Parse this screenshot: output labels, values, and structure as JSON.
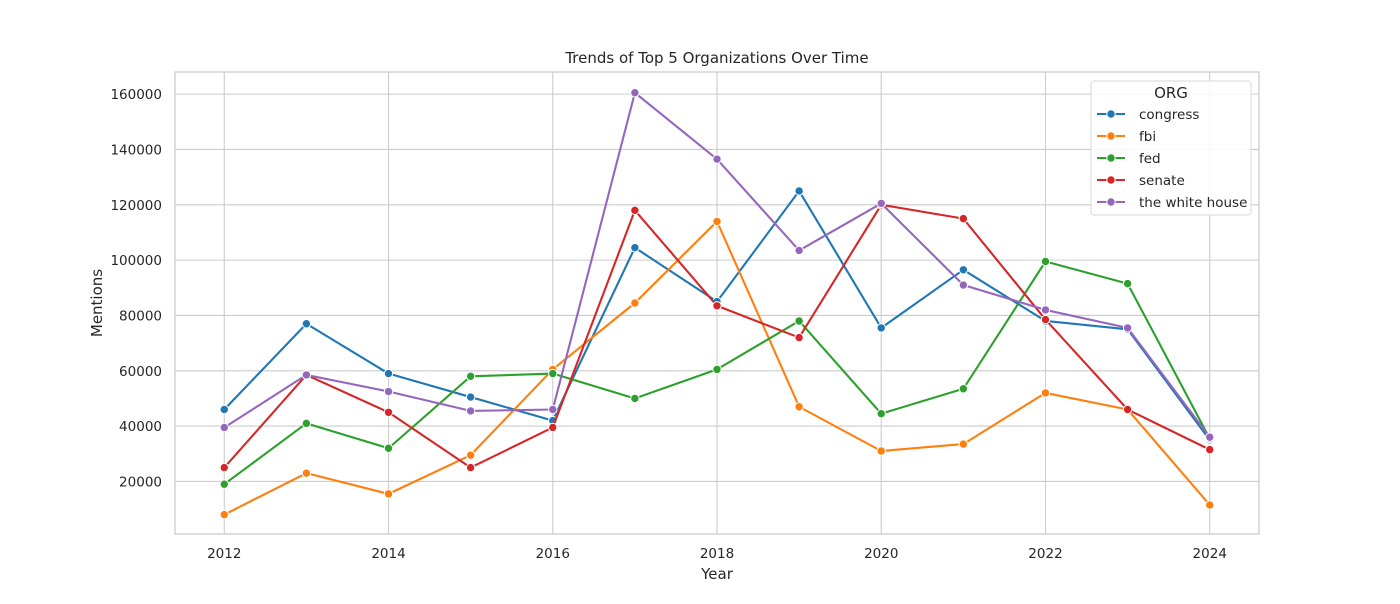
{
  "chart_data": {
    "type": "line",
    "title": "Trends of Top 5 Organizations Over Time",
    "xlabel": "Year",
    "ylabel": "Mentions",
    "x": [
      2012,
      2013,
      2014,
      2015,
      2016,
      2017,
      2018,
      2019,
      2020,
      2021,
      2022,
      2023,
      2024
    ],
    "xticks": [
      "2012",
      "2014",
      "2016",
      "2018",
      "2020",
      "2022",
      "2024"
    ],
    "yticks": [
      "20000",
      "40000",
      "60000",
      "80000",
      "100000",
      "120000",
      "140000",
      "160000"
    ],
    "xlim": [
      2011.4,
      2024.6
    ],
    "ylim": [
      1000,
      168000
    ],
    "grid": true,
    "legend": {
      "title": "ORG",
      "position": "top-right"
    },
    "series": [
      {
        "name": "congress",
        "color": "#1f77b4",
        "values": [
          46000,
          77000,
          59000,
          50500,
          42000,
          104500,
          85000,
          125000,
          75500,
          96500,
          78000,
          75000,
          35000
        ]
      },
      {
        "name": "fbi",
        "color": "#ff7f0e",
        "values": [
          8000,
          23000,
          15500,
          29500,
          60500,
          84500,
          114000,
          47000,
          31000,
          33500,
          52000,
          46000,
          11500
        ]
      },
      {
        "name": "fed",
        "color": "#2ca02c",
        "values": [
          19000,
          41000,
          32000,
          58000,
          59000,
          50000,
          60500,
          78000,
          44500,
          53500,
          99500,
          91500,
          35500
        ]
      },
      {
        "name": "senate",
        "color": "#d62728",
        "values": [
          25000,
          58500,
          45000,
          25000,
          39500,
          118000,
          83500,
          72000,
          120000,
          115000,
          78500,
          46000,
          31500
        ]
      },
      {
        "name": "the white house",
        "color": "#9467bd",
        "values": [
          39500,
          58500,
          52500,
          45500,
          46000,
          160500,
          136500,
          103500,
          120500,
          91000,
          82000,
          75500,
          36000
        ]
      }
    ]
  }
}
